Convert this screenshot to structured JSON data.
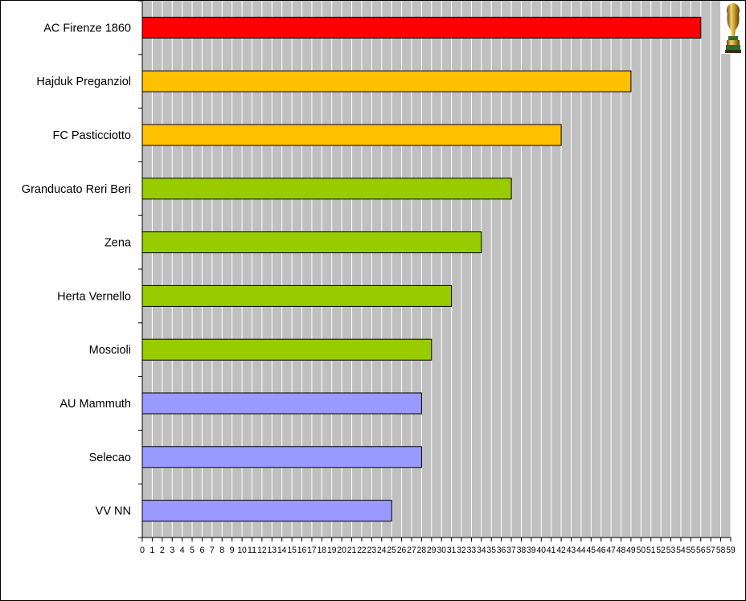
{
  "chart_data": {
    "type": "bar",
    "orientation": "horizontal",
    "title": "",
    "xlabel": "",
    "ylabel": "",
    "xlim": [
      0,
      59
    ],
    "x_ticks": [
      0,
      1,
      2,
      3,
      4,
      5,
      6,
      7,
      8,
      9,
      10,
      11,
      12,
      13,
      14,
      15,
      16,
      17,
      18,
      19,
      20,
      21,
      22,
      23,
      24,
      25,
      26,
      27,
      28,
      29,
      30,
      31,
      32,
      33,
      34,
      35,
      36,
      37,
      38,
      39,
      40,
      41,
      42,
      43,
      44,
      45,
      46,
      47,
      48,
      49,
      50,
      51,
      52,
      53,
      54,
      55,
      56,
      57,
      58,
      59
    ],
    "grid": "vertical",
    "plot_background": "#c0c0c0",
    "categories": [
      "AC Firenze 1860",
      "Hajduk Preganziol",
      "FC Pasticciotto",
      "Granducato Reri Beri",
      "Zena",
      "Herta Vernello",
      "Moscioli",
      "AU Mammuth",
      "Selecao",
      "VV NN"
    ],
    "values": [
      56,
      49,
      42,
      37,
      34,
      31,
      29,
      28,
      28,
      25
    ],
    "colors": [
      "#ff0000",
      "#ffc000",
      "#ffc000",
      "#99cc00",
      "#99cc00",
      "#99cc00",
      "#99cc00",
      "#9999ff",
      "#9999ff",
      "#9999ff"
    ]
  },
  "decorations": {
    "corner_icon": "world-cup-trophy-icon"
  }
}
